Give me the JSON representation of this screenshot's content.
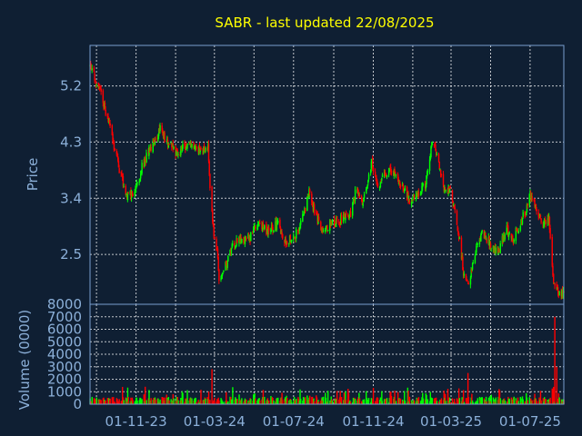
{
  "colors": {
    "background": "#0f1f33",
    "frame": "#7a9fcf",
    "grid": "#ffffff",
    "title": "#ffff00",
    "axis_text": "#8cb0d9",
    "up": "#00ff00",
    "down": "#ff0000"
  },
  "chart_data": [
    {
      "type": "candlestick",
      "title": "SABR - last updated 22/08/2025",
      "ylabel": "Price",
      "ylim": [
        1.7,
        5.85
      ],
      "yticks": [
        "5.2",
        "4.3",
        "3.4",
        "2.5"
      ],
      "ytick_values": [
        5.2,
        4.3,
        3.4,
        2.5
      ],
      "grid": true,
      "trend": {
        "dates": [
          "2023-08-24",
          "2023-09-08",
          "2023-09-20",
          "2023-10-05",
          "2023-10-20",
          "2023-11-01",
          "2023-11-10",
          "2023-11-22",
          "2023-12-08",
          "2023-12-20",
          "2024-01-05",
          "2024-01-20",
          "2024-02-05",
          "2024-02-20",
          "2024-02-23",
          "2024-02-29",
          "2024-03-05",
          "2024-03-08",
          "2024-03-15",
          "2024-03-28",
          "2024-04-10",
          "2024-04-25",
          "2024-05-08",
          "2024-05-22",
          "2024-06-05",
          "2024-06-20",
          "2024-07-02",
          "2024-07-15",
          "2024-07-25",
          "2024-08-05",
          "2024-08-15",
          "2024-08-28",
          "2024-09-10",
          "2024-09-25",
          "2024-10-05",
          "2024-10-15",
          "2024-10-30",
          "2024-11-08",
          "2024-11-15",
          "2024-11-25",
          "2024-12-05",
          "2024-12-15",
          "2024-12-28",
          "2025-01-10",
          "2025-01-20",
          "2025-02-01",
          "2025-02-12",
          "2025-02-20",
          "2025-02-28",
          "2025-03-08",
          "2025-03-15",
          "2025-03-20",
          "2025-03-28",
          "2025-04-05",
          "2025-04-12",
          "2025-04-20",
          "2025-05-01",
          "2025-05-12",
          "2025-05-25",
          "2025-06-05",
          "2025-06-15",
          "2025-06-25",
          "2025-07-01",
          "2025-07-10",
          "2025-07-20",
          "2025-07-30",
          "2025-08-05",
          "2025-08-08",
          "2025-08-12",
          "2025-08-22"
        ],
        "close": [
          5.5,
          5.05,
          4.6,
          3.9,
          3.4,
          3.55,
          3.9,
          4.2,
          4.5,
          4.3,
          4.1,
          4.3,
          4.15,
          4.25,
          3.6,
          2.8,
          2.55,
          2.0,
          2.2,
          2.6,
          2.75,
          2.75,
          3.05,
          2.85,
          3.0,
          2.7,
          2.75,
          3.1,
          3.5,
          3.1,
          2.9,
          3.0,
          3.05,
          3.1,
          3.5,
          3.35,
          3.95,
          3.6,
          3.7,
          3.9,
          3.75,
          3.6,
          3.35,
          3.45,
          3.6,
          4.35,
          3.8,
          3.5,
          3.6,
          3.1,
          2.7,
          2.2,
          2.0,
          2.4,
          2.7,
          2.85,
          2.65,
          2.5,
          2.9,
          2.75,
          3.0,
          3.2,
          3.5,
          3.2,
          3.0,
          3.05,
          2.2,
          1.95,
          1.9,
          1.85
        ]
      }
    },
    {
      "type": "bar",
      "ylabel": "Volume (0000)",
      "ylim": [
        0,
        8000
      ],
      "yticks": [
        "8000",
        "7000",
        "6000",
        "5000",
        "4000",
        "3000",
        "2000",
        "1000",
        "0"
      ],
      "ytick_values": [
        8000,
        7000,
        6000,
        5000,
        4000,
        3000,
        2000,
        1000,
        0
      ],
      "spikes": [
        {
          "date": "2024-02-26",
          "value": 2800
        },
        {
          "date": "2025-03-27",
          "value": 2500
        },
        {
          "date": "2025-08-08",
          "value": 7000
        },
        {
          "date": "2025-08-11",
          "value": 3000
        }
      ]
    }
  ],
  "x_axis": {
    "xlim": [
      "2023-08-22",
      "2025-08-22"
    ],
    "tick_labels": [
      "01-11-23",
      "01-03-24",
      "01-07-24",
      "01-11-24",
      "01-03-25",
      "01-07-25"
    ],
    "tick_dates": [
      "2023-11-01",
      "2024-03-01",
      "2024-07-01",
      "2024-11-01",
      "2025-03-01",
      "2025-07-01"
    ],
    "extra_grid_dates": [
      "2023-09-01",
      "2024-01-01",
      "2024-05-01",
      "2024-09-01",
      "2025-01-01",
      "2025-05-01"
    ]
  }
}
